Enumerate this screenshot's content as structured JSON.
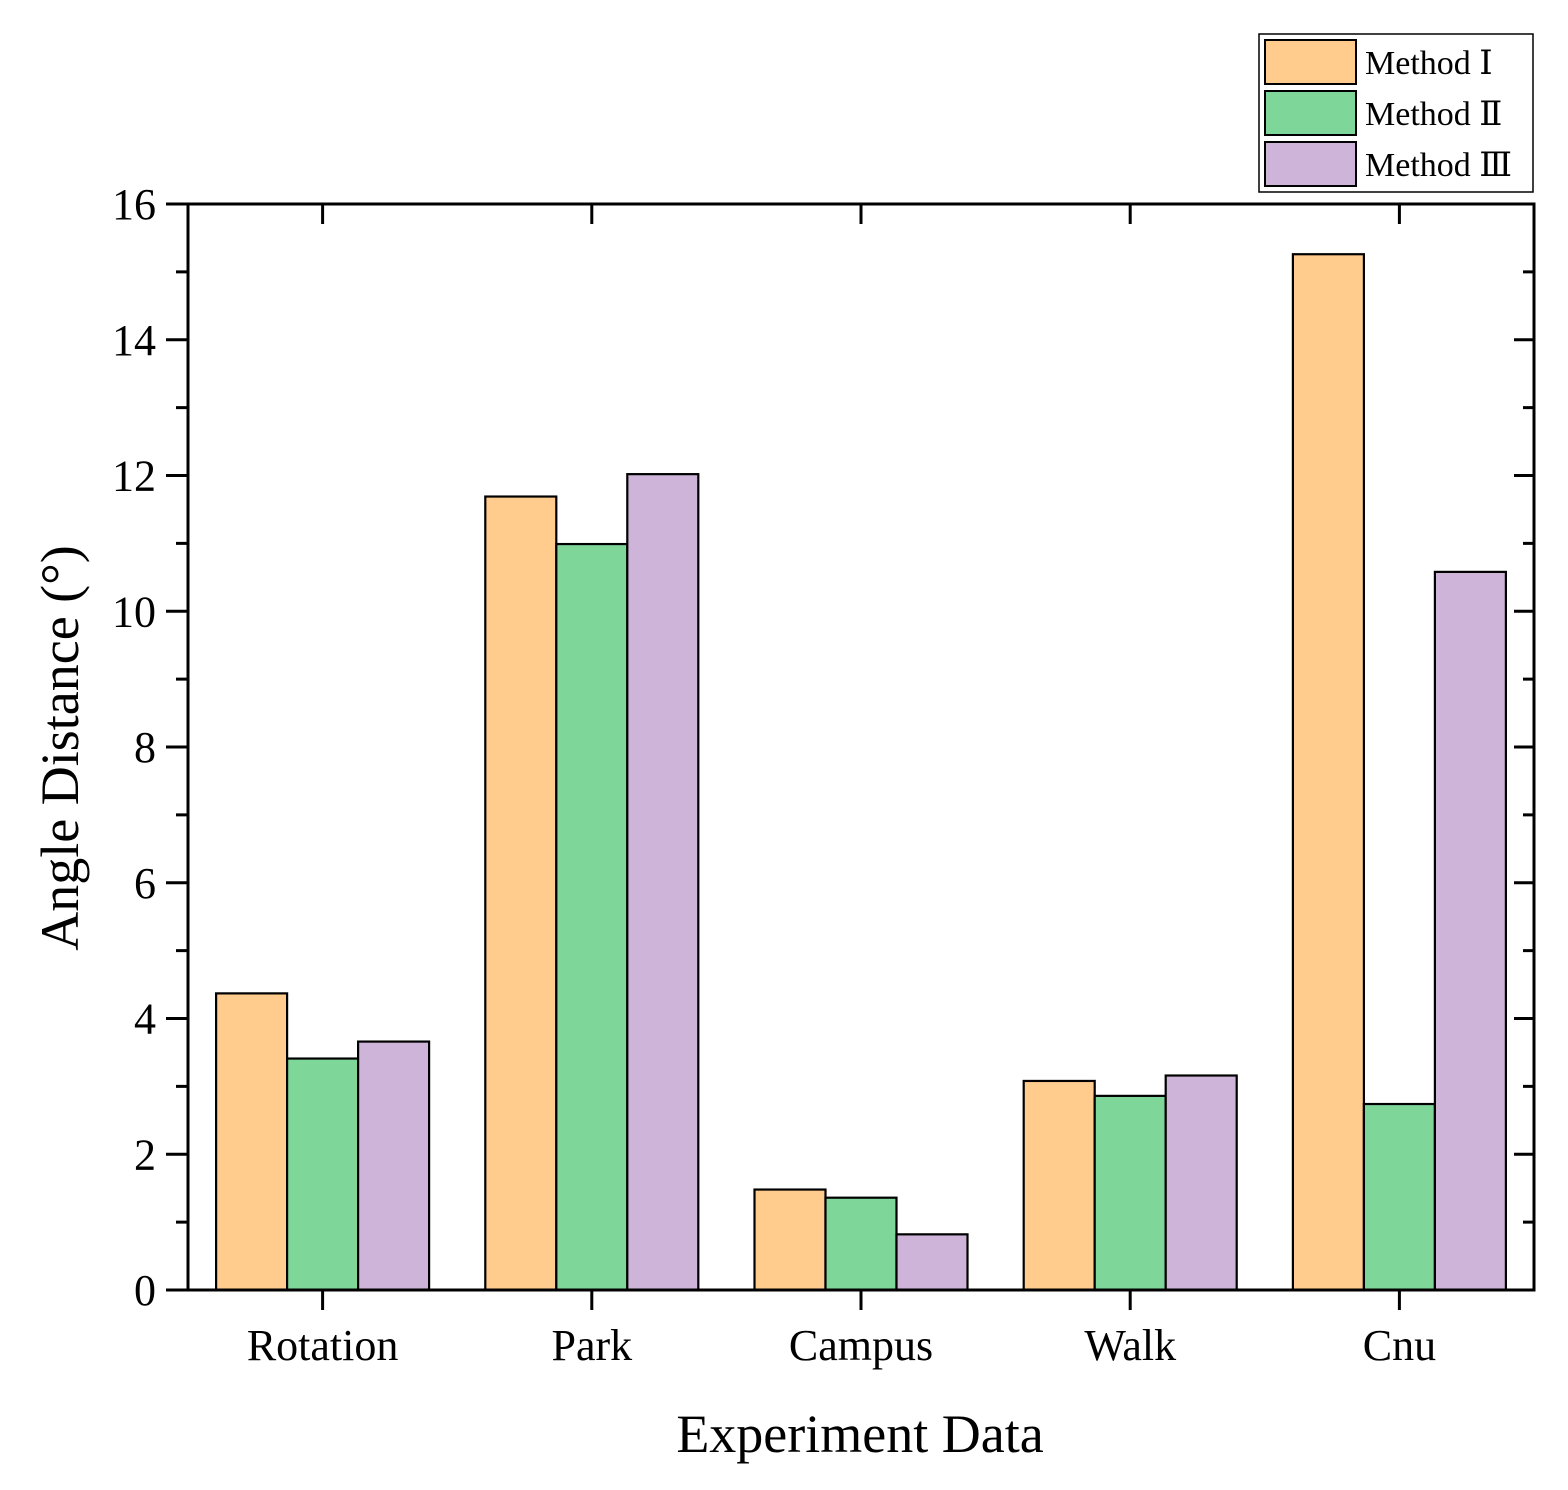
{
  "chart_data": {
    "type": "bar",
    "title": "",
    "xlabel": "Experiment Data",
    "ylabel": "Angle Distance (°)",
    "categories": [
      "Rotation",
      "Park",
      "Campus",
      "Walk",
      "Cnu"
    ],
    "ylim": [
      0,
      16
    ],
    "yticks": [
      "0",
      "2",
      "4",
      "6",
      "8",
      "10",
      "12",
      "14",
      "16"
    ],
    "grid": false,
    "legend_position": "top-right",
    "series": [
      {
        "name": "Method  Ⅰ",
        "color": "#FFCC8E",
        "values": [
          4.37,
          11.69,
          1.48,
          3.08,
          15.26
        ]
      },
      {
        "name": "Method  Ⅱ",
        "color": "#7FD699",
        "values": [
          3.41,
          10.99,
          1.36,
          2.86,
          2.74
        ]
      },
      {
        "name": "Method Ⅲ",
        "color": "#CDB4D8",
        "values": [
          3.66,
          12.02,
          0.82,
          3.16,
          10.58
        ]
      }
    ]
  }
}
